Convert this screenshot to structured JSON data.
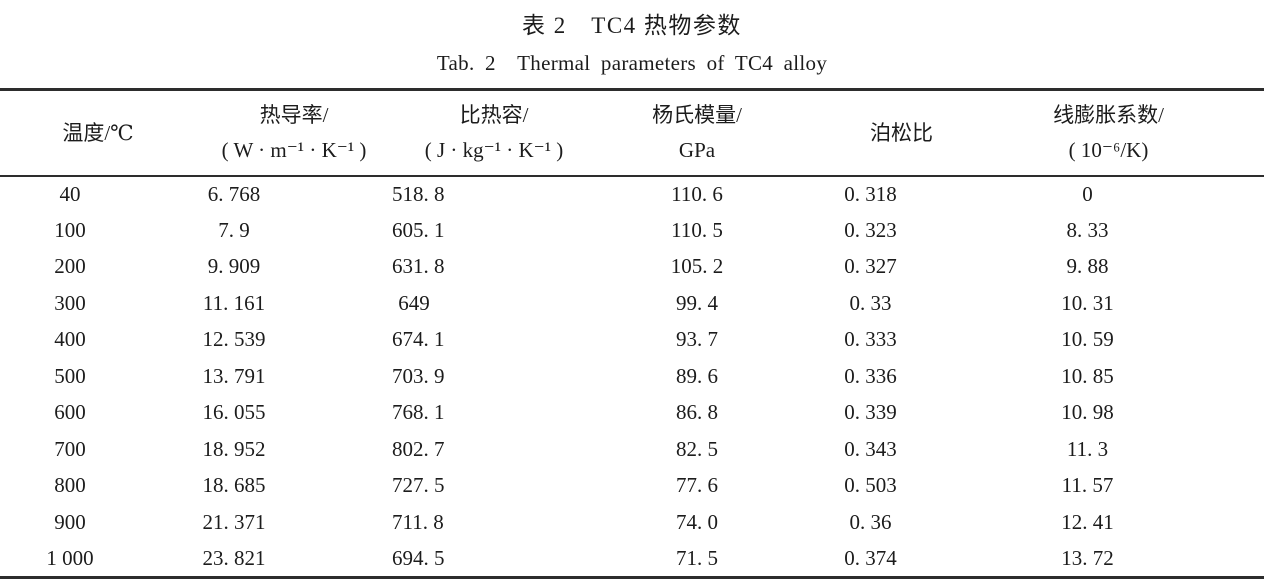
{
  "title": {
    "zh": "表 2　TC4 热物参数",
    "en": "Tab. 2　Thermal parameters of TC4 alloy"
  },
  "table": {
    "columns": [
      {
        "id": "temperature",
        "lines": [
          "温度/℃"
        ]
      },
      {
        "id": "thermal-conductivity",
        "lines": [
          "热导率/",
          "( W · m⁻¹ · K⁻¹ )"
        ]
      },
      {
        "id": "specific-heat",
        "lines": [
          "比热容/",
          "( J · kg⁻¹ · K⁻¹ )"
        ]
      },
      {
        "id": "youngs-modulus",
        "lines": [
          "杨氏模量/",
          "GPa"
        ]
      },
      {
        "id": "poisson-ratio",
        "lines": [
          "泊松比"
        ]
      },
      {
        "id": "thermal-expansion",
        "lines": [
          "线膨胀系数/",
          "( 10⁻⁶/K)"
        ]
      }
    ],
    "rows": [
      [
        "40",
        "6. 768",
        "518. 8",
        "110. 6",
        "0. 318",
        "0"
      ],
      [
        "100",
        "7. 9",
        "605. 1",
        "110. 5",
        "0. 323",
        "8. 33"
      ],
      [
        "200",
        "9. 909",
        "631. 8",
        "105. 2",
        "0. 327",
        "9. 88"
      ],
      [
        "300",
        "11. 161",
        "649",
        "99. 4",
        "0. 33",
        "10. 31"
      ],
      [
        "400",
        "12. 539",
        "674. 1",
        "93. 7",
        "0. 333",
        "10. 59"
      ],
      [
        "500",
        "13. 791",
        "703. 9",
        "89. 6",
        "0. 336",
        "10. 85"
      ],
      [
        "600",
        "16. 055",
        "768. 1",
        "86. 8",
        "0. 339",
        "10. 98"
      ],
      [
        "700",
        "18. 952",
        "802. 7",
        "82. 5",
        "0. 343",
        "11. 3"
      ],
      [
        "800",
        "18. 685",
        "727. 5",
        "77. 6",
        "0. 503",
        "11. 57"
      ],
      [
        "900",
        "21. 371",
        "711. 8",
        "74. 0",
        "0. 36",
        "12. 41"
      ],
      [
        "1 000",
        "23. 821",
        "694. 5",
        "71. 5",
        "0. 374",
        "13. 72"
      ]
    ]
  }
}
